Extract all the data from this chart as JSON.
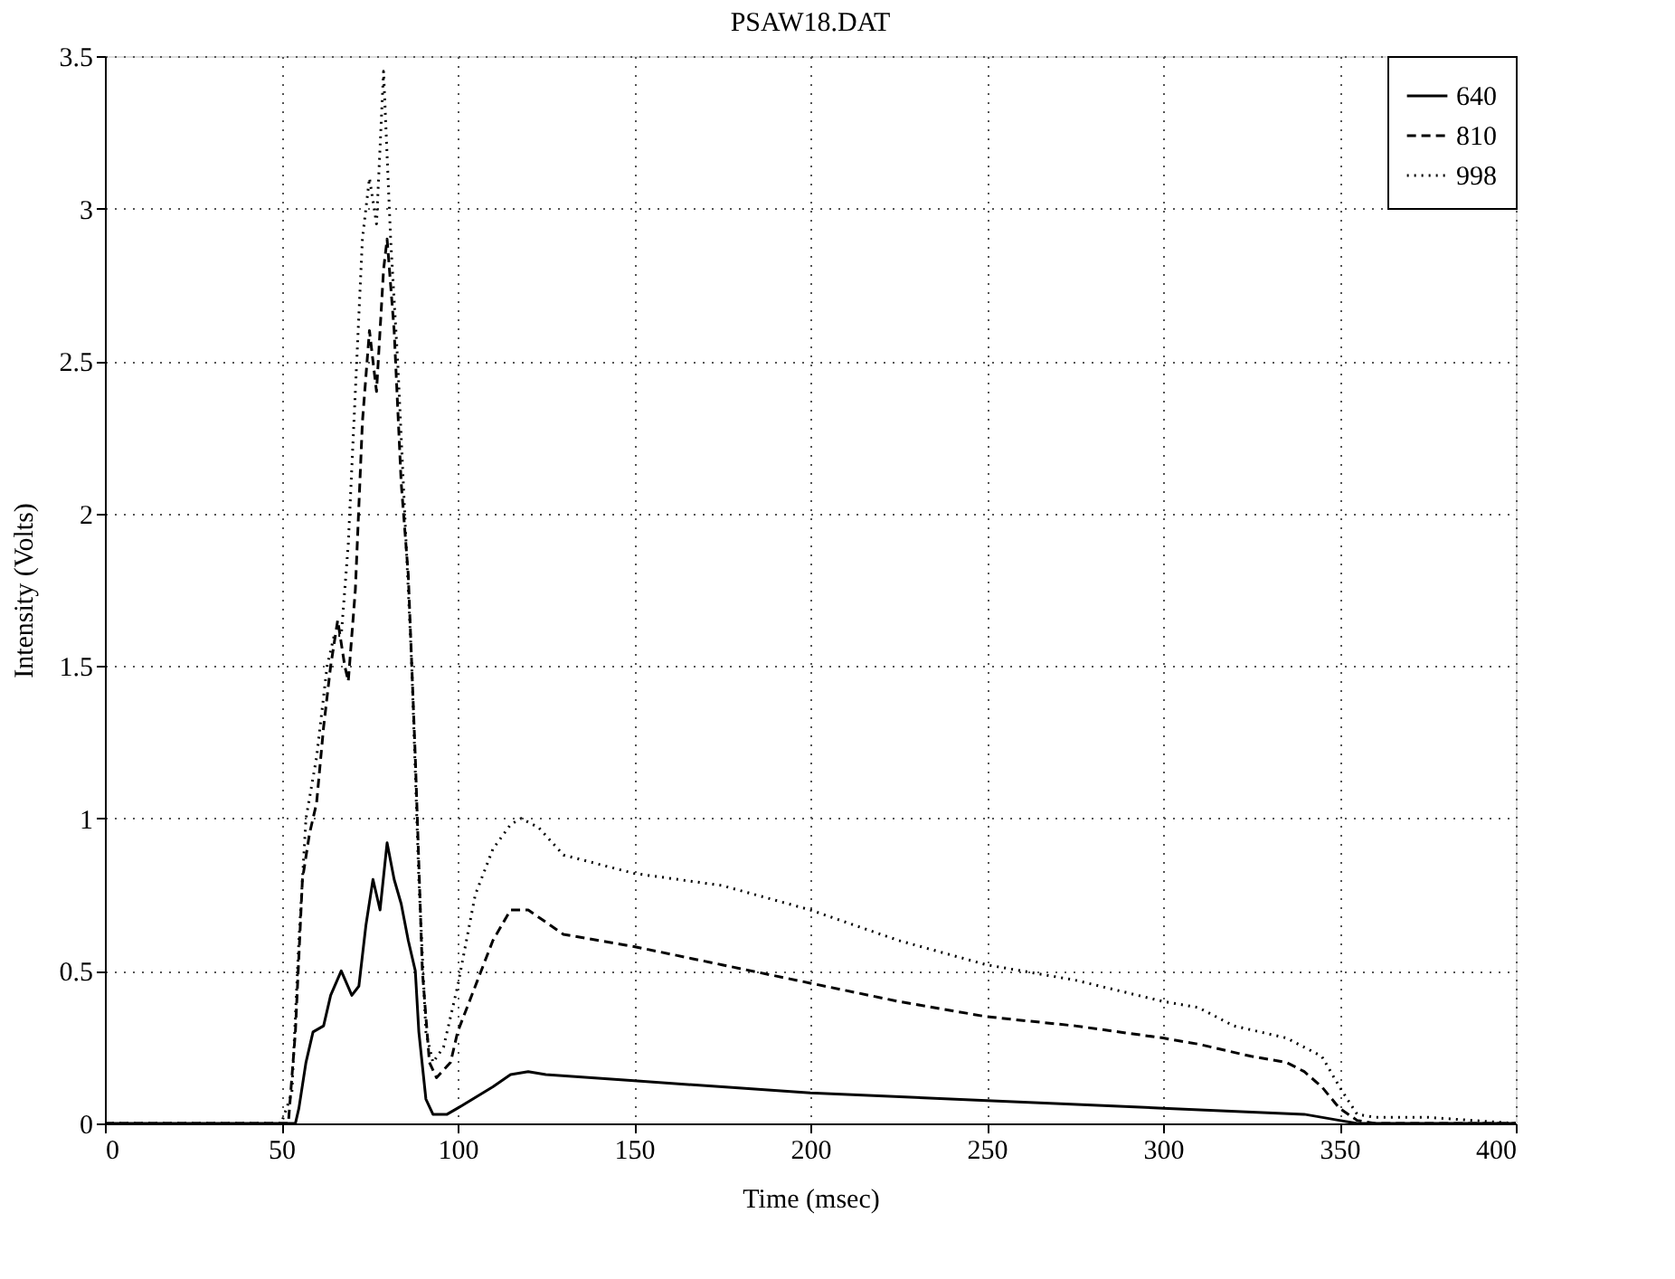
{
  "chart_data": {
    "type": "line",
    "title": "PSAW18.DAT",
    "xlabel": "Time (msec)",
    "ylabel": "Intensity (Volts)",
    "xlim": [
      0,
      400
    ],
    "xticks": [
      0,
      50,
      100,
      150,
      200,
      250,
      300,
      350,
      400
    ],
    "ylim": [
      0,
      3.5
    ],
    "yticks": [
      0,
      0.5,
      1,
      1.5,
      2,
      2.5,
      3,
      3.5
    ],
    "grid": true,
    "legend": "top right",
    "marker": "none",
    "series": [
      {
        "name": "640",
        "color": "#000000",
        "line_style": "solid",
        "x": [
          0,
          50,
          54,
          55,
          57,
          59,
          62,
          64,
          67,
          70,
          72,
          74,
          76,
          78,
          80,
          82,
          84,
          86,
          88,
          89,
          91,
          93,
          97,
          100,
          110,
          115,
          120,
          125,
          150,
          175,
          200,
          250,
          300,
          340,
          350,
          355,
          400
        ],
        "values": [
          0,
          0,
          0,
          0.05,
          0.2,
          0.3,
          0.32,
          0.42,
          0.5,
          0.42,
          0.45,
          0.65,
          0.8,
          0.7,
          0.92,
          0.8,
          0.72,
          0.6,
          0.5,
          0.3,
          0.08,
          0.03,
          0.03,
          0.05,
          0.12,
          0.16,
          0.17,
          0.16,
          0.14,
          0.12,
          0.1,
          0.075,
          0.05,
          0.03,
          0.01,
          0,
          0
        ]
      },
      {
        "name": "810",
        "color": "#000000",
        "line_style": "dashed",
        "x": [
          0,
          52,
          54,
          56,
          58,
          60,
          62,
          64,
          66,
          68,
          69,
          71,
          73,
          75,
          77,
          79,
          80,
          82,
          84,
          86,
          88,
          90,
          92,
          94,
          98,
          100,
          105,
          110,
          115,
          120,
          125,
          130,
          150,
          175,
          200,
          225,
          250,
          275,
          300,
          310,
          325,
          335,
          340,
          345,
          350,
          355,
          360,
          400
        ],
        "values": [
          0,
          0,
          0.3,
          0.8,
          0.95,
          1.05,
          1.3,
          1.5,
          1.65,
          1.5,
          1.45,
          1.75,
          2.3,
          2.6,
          2.4,
          2.8,
          2.9,
          2.6,
          2.1,
          1.8,
          1.2,
          0.5,
          0.2,
          0.15,
          0.2,
          0.3,
          0.45,
          0.6,
          0.7,
          0.7,
          0.66,
          0.62,
          0.58,
          0.52,
          0.46,
          0.4,
          0.35,
          0.32,
          0.28,
          0.26,
          0.22,
          0.2,
          0.17,
          0.12,
          0.05,
          0.01,
          0,
          0
        ]
      },
      {
        "name": "998",
        "color": "#000000",
        "line_style": "dotted",
        "x": [
          0,
          50,
          53,
          55,
          57,
          60,
          63,
          65,
          67,
          69,
          71,
          73,
          75,
          77,
          79,
          81,
          83,
          85,
          87,
          89,
          91,
          93,
          96,
          100,
          105,
          110,
          115,
          118,
          123,
          130,
          150,
          175,
          200,
          225,
          250,
          260,
          275,
          300,
          310,
          320,
          335,
          345,
          350,
          355,
          360,
          375,
          400
        ],
        "values": [
          0,
          0,
          0.1,
          0.6,
          1.0,
          1.2,
          1.5,
          1.6,
          1.6,
          1.9,
          2.4,
          2.9,
          3.1,
          2.95,
          3.45,
          2.9,
          2.5,
          2.0,
          1.5,
          0.8,
          0.3,
          0.2,
          0.25,
          0.45,
          0.75,
          0.9,
          0.98,
          1.0,
          0.97,
          0.88,
          0.82,
          0.78,
          0.7,
          0.6,
          0.52,
          0.5,
          0.47,
          0.4,
          0.38,
          0.32,
          0.28,
          0.22,
          0.12,
          0.03,
          0.02,
          0.02,
          0
        ]
      }
    ]
  }
}
